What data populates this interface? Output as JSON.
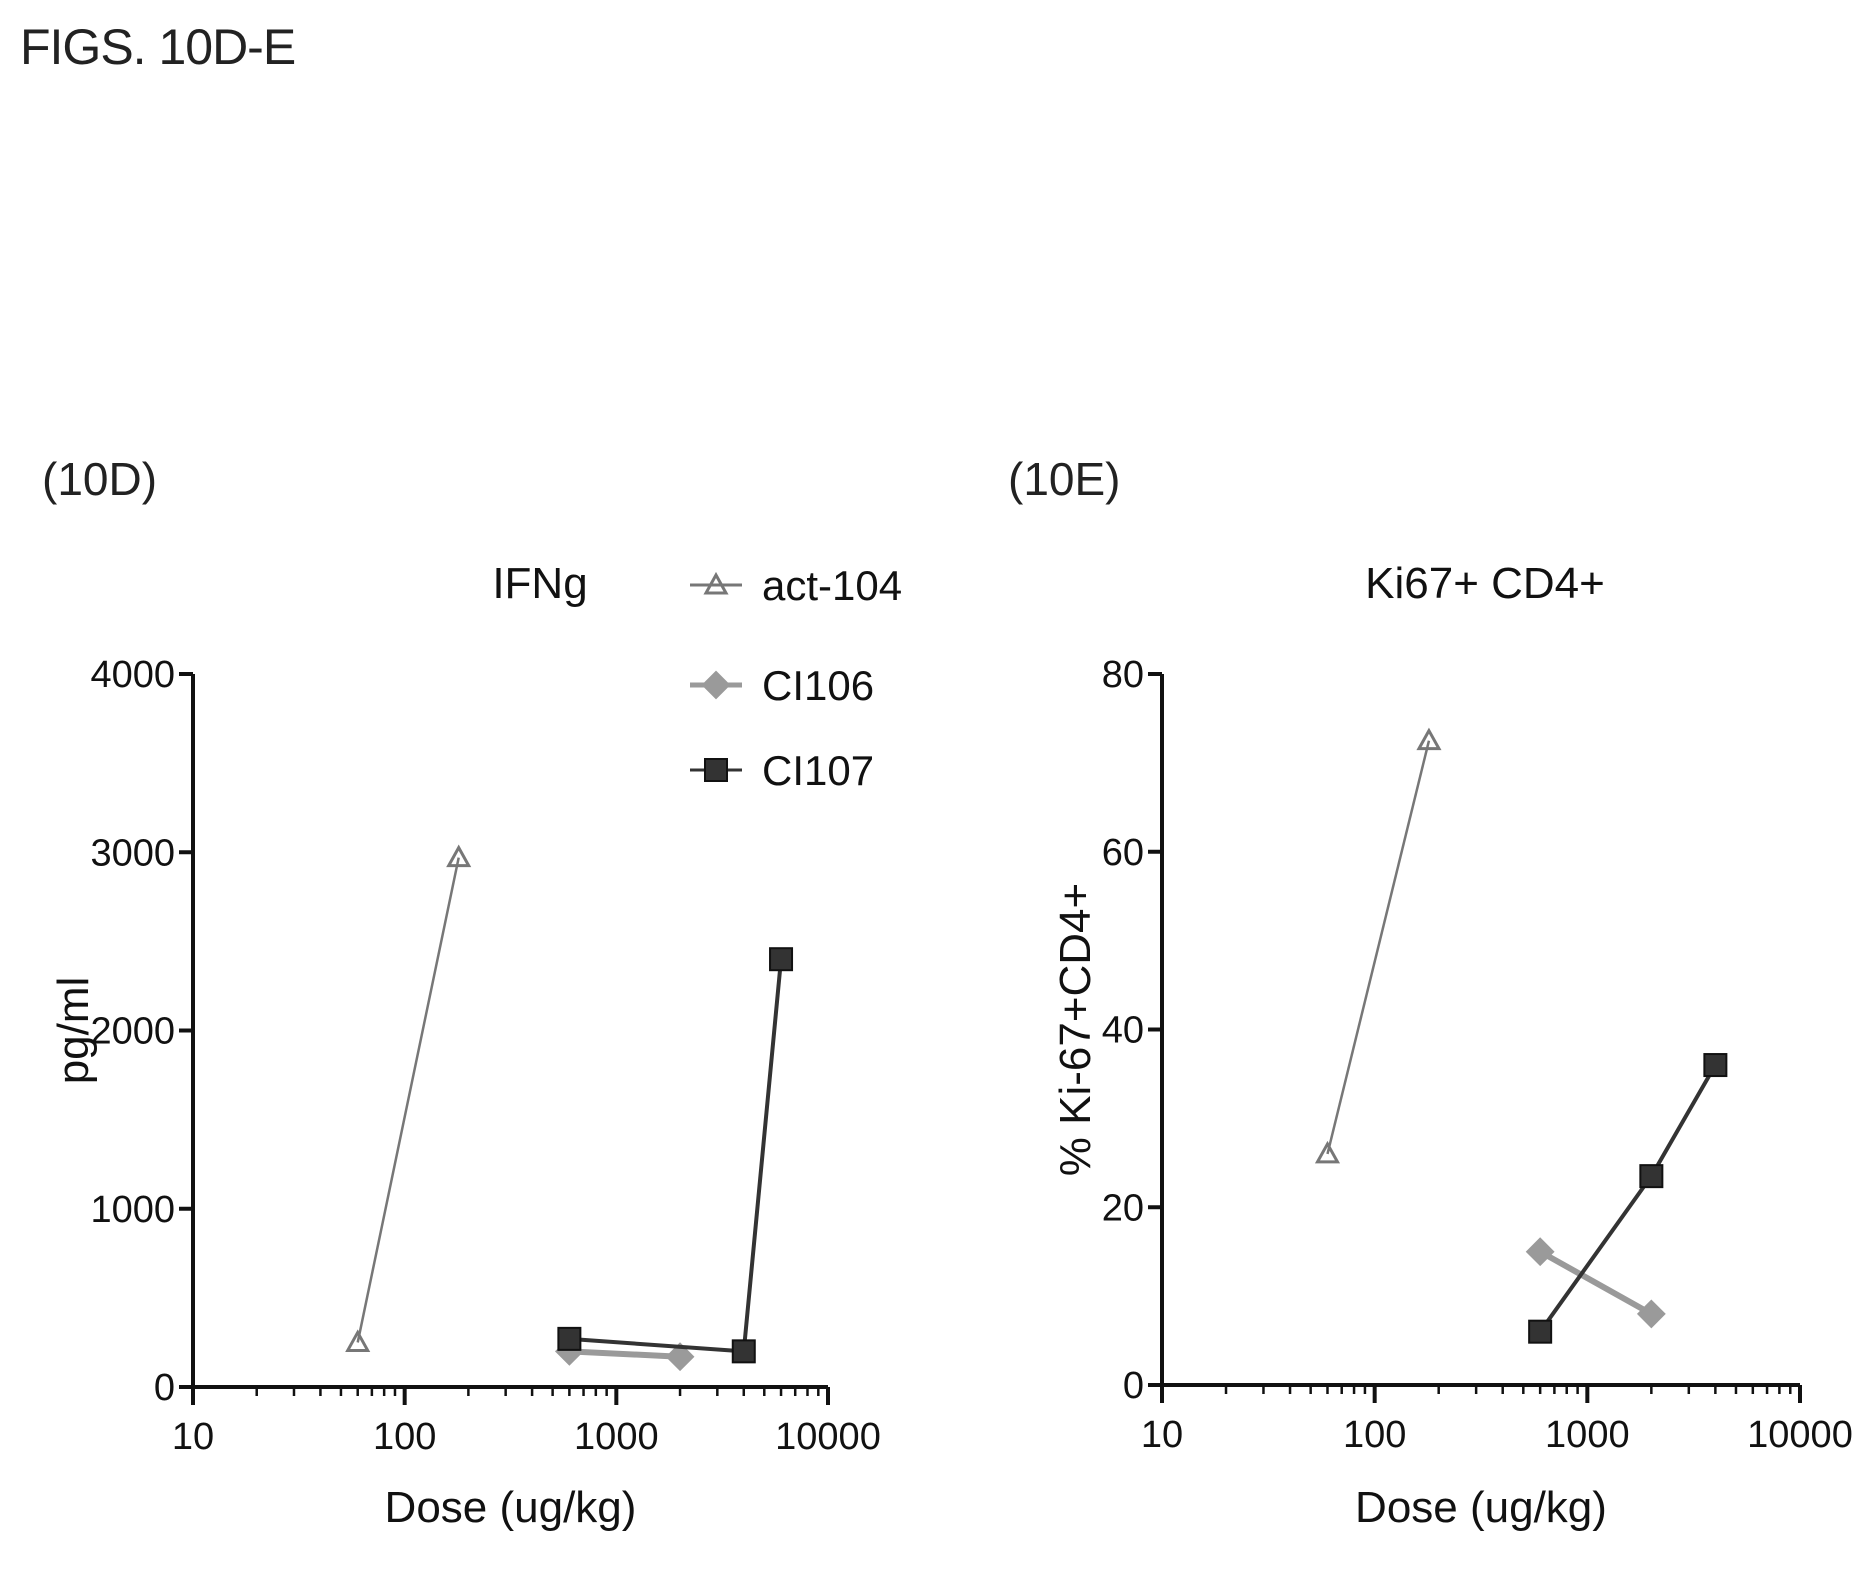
{
  "figure_title": "FIGS. 10D-E",
  "legend": {
    "series": [
      {
        "name": "act-104",
        "marker": "triangle",
        "color": "#777777"
      },
      {
        "name": "CI106",
        "marker": "diamond",
        "color": "#9a9a9a"
      },
      {
        "name": "CI107",
        "marker": "square",
        "color": "#333333"
      }
    ]
  },
  "chart_data": [
    {
      "type": "line",
      "panel_label": "(10D)",
      "title": "IFNg",
      "xlabel": "Dose (ug/kg)",
      "ylabel": "pg/ml",
      "xscale": "log",
      "xlim": [
        10,
        10000
      ],
      "ylim": [
        0,
        4000
      ],
      "xticks": [
        10,
        100,
        1000,
        10000
      ],
      "yticks": [
        0,
        1000,
        2000,
        3000,
        4000
      ],
      "series": [
        {
          "name": "act-104",
          "x": [
            60,
            180
          ],
          "y": [
            250,
            2970
          ]
        },
        {
          "name": "CI106",
          "x": [
            600,
            2000
          ],
          "y": [
            200,
            170
          ]
        },
        {
          "name": "CI107",
          "x": [
            600,
            4000,
            6000
          ],
          "y": [
            270,
            200,
            2400
          ]
        }
      ]
    },
    {
      "type": "line",
      "panel_label": "(10E)",
      "title": "Ki67+ CD4+",
      "xlabel": "Dose (ug/kg)",
      "ylabel": "% Ki-67+CD4+",
      "xscale": "log",
      "xlim": [
        10,
        10000
      ],
      "ylim": [
        0,
        80
      ],
      "xticks": [
        10,
        100,
        1000,
        10000
      ],
      "yticks": [
        0,
        20,
        40,
        60,
        80
      ],
      "series": [
        {
          "name": "act-104",
          "x": [
            60,
            180
          ],
          "y": [
            26,
            72.5
          ]
        },
        {
          "name": "CI106",
          "x": [
            600,
            2000
          ],
          "y": [
            15,
            8
          ]
        },
        {
          "name": "CI107",
          "x": [
            600,
            2000,
            4000
          ],
          "y": [
            6,
            23.5,
            36
          ]
        }
      ]
    }
  ]
}
